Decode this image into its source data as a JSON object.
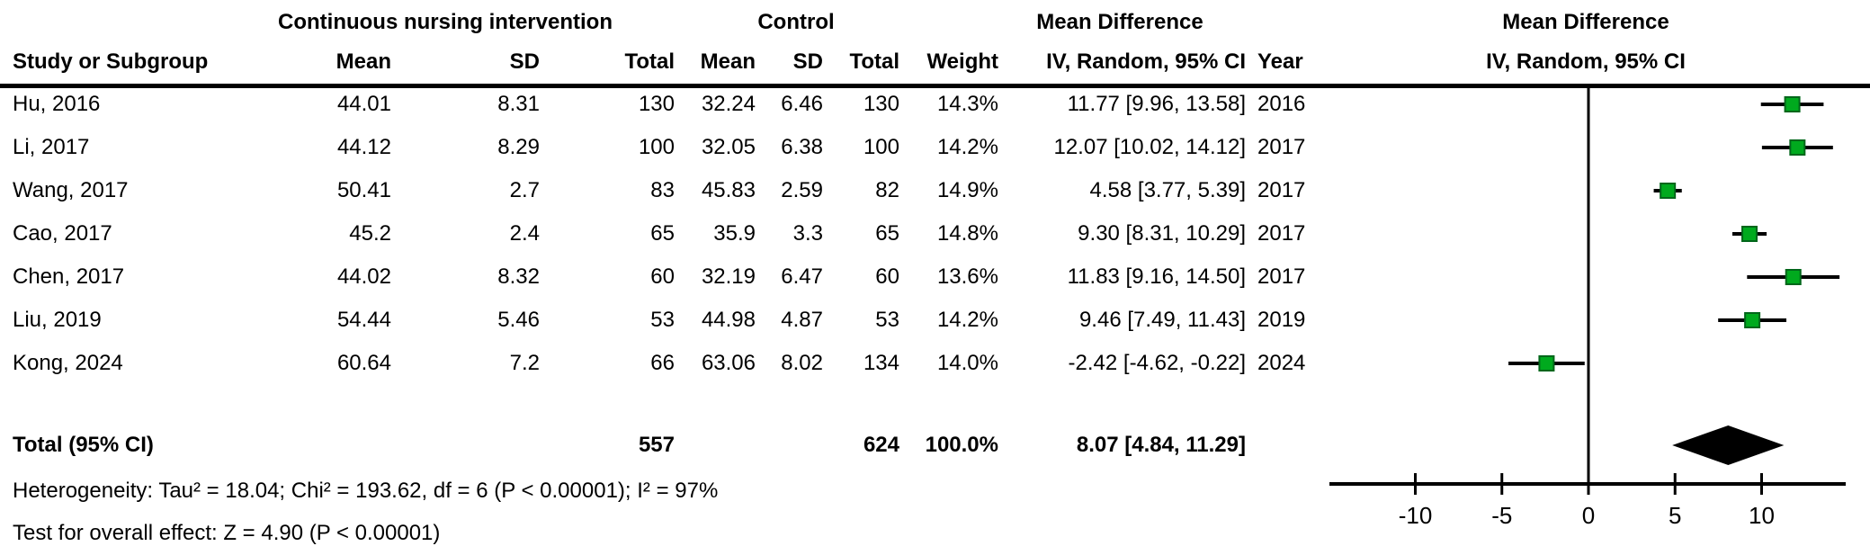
{
  "headers": {
    "group1": "Continuous nursing intervention",
    "group2": "Control",
    "md_col": "Mean Difference",
    "md_plot": "Mean Difference",
    "study": "Study or Subgroup",
    "mean1": "Mean",
    "sd1": "SD",
    "total1": "Total",
    "mean2": "Mean",
    "sd2": "SD",
    "total2": "Total",
    "weight": "Weight",
    "ci": "IV, Random, 95% CI",
    "year": "Year",
    "ci_plot": "IV, Random, 95% CI"
  },
  "chart_data": {
    "type": "forest",
    "effect_measure": "Mean Difference",
    "model": "IV, Random, 95% CI",
    "axis": {
      "ticks": [
        -10,
        -5,
        0,
        5,
        10
      ],
      "min": -14.9,
      "max": 14.9,
      "zero_line": 0
    },
    "marker_color": "#00aa1e",
    "marker_border_color": "#00661a",
    "diamond_color": "#000000",
    "studies": [
      {
        "study": "Hu, 2016",
        "mean1": "44.01",
        "sd1": "8.31",
        "total1": "130",
        "mean2": "32.24",
        "sd2": "6.46",
        "total2": "130",
        "weight": "14.3%",
        "ci_text": "11.77 [9.96, 13.58]",
        "year": "2016",
        "est": 11.77,
        "lo": 9.96,
        "hi": 13.58
      },
      {
        "study": "Li, 2017",
        "mean1": "44.12",
        "sd1": "8.29",
        "total1": "100",
        "mean2": "32.05",
        "sd2": "6.38",
        "total2": "100",
        "weight": "14.2%",
        "ci_text": "12.07 [10.02, 14.12]",
        "year": "2017",
        "est": 12.07,
        "lo": 10.02,
        "hi": 14.12
      },
      {
        "study": "Wang, 2017",
        "mean1": "50.41",
        "sd1": "2.7",
        "total1": "83",
        "mean2": "45.83",
        "sd2": "2.59",
        "total2": "82",
        "weight": "14.9%",
        "ci_text": "4.58 [3.77, 5.39]",
        "year": "2017",
        "est": 4.58,
        "lo": 3.77,
        "hi": 5.39
      },
      {
        "study": "Cao, 2017",
        "mean1": "45.2",
        "sd1": "2.4",
        "total1": "65",
        "mean2": "35.9",
        "sd2": "3.3",
        "total2": "65",
        "weight": "14.8%",
        "ci_text": "9.30 [8.31, 10.29]",
        "year": "2017",
        "est": 9.3,
        "lo": 8.31,
        "hi": 10.29
      },
      {
        "study": "Chen, 2017",
        "mean1": "44.02",
        "sd1": "8.32",
        "total1": "60",
        "mean2": "32.19",
        "sd2": "6.47",
        "total2": "60",
        "weight": "13.6%",
        "ci_text": "11.83 [9.16, 14.50]",
        "year": "2017",
        "est": 11.83,
        "lo": 9.16,
        "hi": 14.5
      },
      {
        "study": "Liu, 2019",
        "mean1": "54.44",
        "sd1": "5.46",
        "total1": "53",
        "mean2": "44.98",
        "sd2": "4.87",
        "total2": "53",
        "weight": "14.2%",
        "ci_text": "9.46 [7.49, 11.43]",
        "year": "2019",
        "est": 9.46,
        "lo": 7.49,
        "hi": 11.43
      },
      {
        "study": "Kong, 2024",
        "mean1": "60.64",
        "sd1": "7.2",
        "total1": "66",
        "mean2": "63.06",
        "sd2": "8.02",
        "total2": "134",
        "weight": "14.0%",
        "ci_text": "-2.42 [-4.62, -0.22]",
        "year": "2024",
        "est": -2.42,
        "lo": -4.62,
        "hi": -0.22
      }
    ],
    "total": {
      "label": "Total (95% CI)",
      "total1": "557",
      "total2": "624",
      "weight": "100.0%",
      "ci_text": "8.07 [4.84, 11.29]",
      "est": 8.07,
      "lo": 4.84,
      "hi": 11.29
    }
  },
  "footer": {
    "heterogeneity": "Heterogeneity: Tau² = 18.04; Chi² = 193.62, df = 6 (P < 0.00001); I² = 97%",
    "overall_effect": "Test for overall effect: Z = 4.90 (P < 0.00001)"
  }
}
